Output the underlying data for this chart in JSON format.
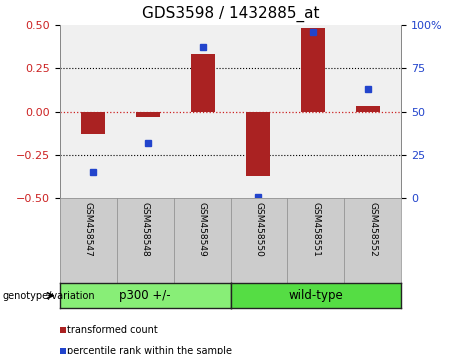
{
  "title": "GDS3598 / 1432885_at",
  "samples": [
    "GSM458547",
    "GSM458548",
    "GSM458549",
    "GSM458550",
    "GSM458551",
    "GSM458552"
  ],
  "bar_values": [
    -0.13,
    -0.03,
    0.33,
    -0.37,
    0.48,
    0.03
  ],
  "percentile_values": [
    15,
    32,
    87,
    1,
    96,
    63
  ],
  "bar_color": "#aa2222",
  "dot_color": "#2244cc",
  "ylim_left": [
    -0.5,
    0.5
  ],
  "ylim_right": [
    0,
    100
  ],
  "yticks_left": [
    -0.5,
    -0.25,
    0,
    0.25,
    0.5
  ],
  "yticks_right": [
    0,
    25,
    50,
    75,
    100
  ],
  "hline_dotted_values": [
    -0.25,
    0.25
  ],
  "hline_red_value": 0,
  "groups": [
    {
      "label": "p300 +/-",
      "indices": [
        0,
        1,
        2
      ],
      "color": "#88ee77"
    },
    {
      "label": "wild-type",
      "indices": [
        3,
        4,
        5
      ],
      "color": "#55dd44"
    }
  ],
  "group_label": "genotype/variation",
  "legend_items": [
    {
      "label": "transformed count",
      "color": "#aa2222"
    },
    {
      "label": "percentile rank within the sample",
      "color": "#2244cc"
    }
  ],
  "bar_width": 0.45,
  "background_plot": "#f0f0f0",
  "background_outer": "#ffffff",
  "tick_label_color_left": "#cc2222",
  "tick_label_color_right": "#2244cc",
  "title_fontsize": 11,
  "axis_fontsize": 8
}
